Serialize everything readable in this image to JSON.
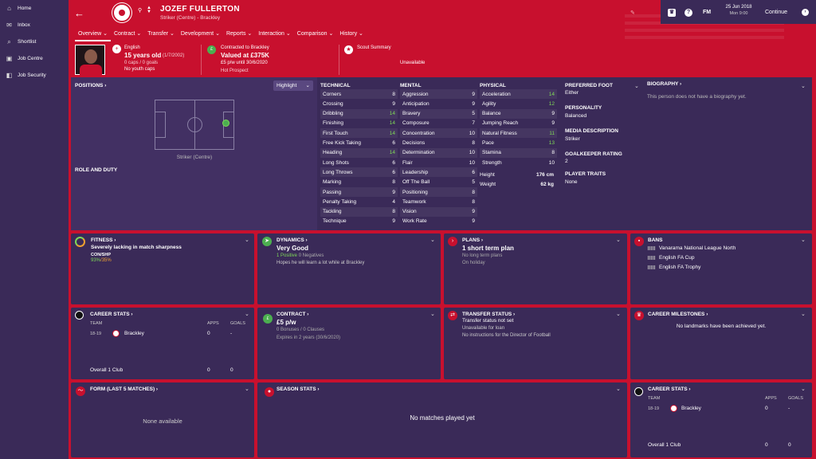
{
  "sidebar": {
    "items": [
      {
        "label": "Home",
        "icon": "house-icon",
        "glyph": "⌂"
      },
      {
        "label": "Inbox",
        "icon": "inbox-icon",
        "glyph": "✉"
      },
      {
        "label": "Shortlist",
        "icon": "search-icon",
        "glyph": "⌕"
      },
      {
        "label": "Job Centre",
        "icon": "briefcase-icon",
        "glyph": "▣"
      },
      {
        "label": "Job Security",
        "icon": "lock-icon",
        "glyph": "◧"
      }
    ]
  },
  "header": {
    "name": "JOZEF FULLERTON",
    "subtitle": "Striker (Centre) - Brackley",
    "tabs": [
      "Overview ⌄",
      "Contract ⌄",
      "Transfer ⌄",
      "Development ⌄",
      "Reports ⌄",
      "Interaction ⌄",
      "Comparison ⌄",
      "History ⌄"
    ],
    "date": "25 Jun 2018",
    "time": "Mon 9:00",
    "fm": "FM",
    "continue": "Continue"
  },
  "info": {
    "nationality": "English",
    "age": "15 years old",
    "dob": "(1/7/2002)",
    "caps": "0 caps / 0 goals",
    "youth": "No youth caps",
    "contracted": "Contracted to Brackley",
    "value": "Valued at £375K",
    "wage": "£5 p/w until 30/6/2020",
    "prospect": "Hot Prospect",
    "scout_title": "Scout Summary",
    "scout_value": "Unavailable"
  },
  "positions": {
    "title": "POSITIONS ›",
    "highlight": "Highlight",
    "position": "Striker (Centre)",
    "role_title": "ROLE AND DUTY"
  },
  "technical": {
    "title": "TECHNICAL",
    "rows": [
      [
        "Corners",
        "8"
      ],
      [
        "Crossing",
        "9"
      ],
      [
        "Dribbling",
        "14"
      ],
      [
        "Finishing",
        "14"
      ],
      [
        "First Touch",
        "14"
      ],
      [
        "Free Kick Taking",
        "6"
      ],
      [
        "Heading",
        "14"
      ],
      [
        "Long Shots",
        "6"
      ],
      [
        "Long Throws",
        "6"
      ],
      [
        "Marking",
        "8"
      ],
      [
        "Passing",
        "9"
      ],
      [
        "Penalty Taking",
        "4"
      ],
      [
        "Tackling",
        "8"
      ],
      [
        "Technique",
        "9"
      ]
    ]
  },
  "mental": {
    "title": "MENTAL",
    "rows": [
      [
        "Aggression",
        "9"
      ],
      [
        "Anticipation",
        "9"
      ],
      [
        "Bravery",
        "5"
      ],
      [
        "Composure",
        "7"
      ],
      [
        "Concentration",
        "10"
      ],
      [
        "Decisions",
        "8"
      ],
      [
        "Determination",
        "10"
      ],
      [
        "Flair",
        "10"
      ],
      [
        "Leadership",
        "6"
      ],
      [
        "Off The Ball",
        "5"
      ],
      [
        "Positioning",
        "8"
      ],
      [
        "Teamwork",
        "8"
      ],
      [
        "Vision",
        "9"
      ],
      [
        "Work Rate",
        "9"
      ]
    ]
  },
  "physical": {
    "title": "PHYSICAL",
    "rows": [
      [
        "Acceleration",
        "14"
      ],
      [
        "Agility",
        "12"
      ],
      [
        "Balance",
        "9"
      ],
      [
        "Jumping Reach",
        "9"
      ],
      [
        "Natural Fitness",
        "11"
      ],
      [
        "Pace",
        "13"
      ],
      [
        "Stamina",
        "8"
      ],
      [
        "Strength",
        "10"
      ]
    ],
    "height_label": "Height",
    "height": "176 cm",
    "weight_label": "Weight",
    "weight": "62 kg"
  },
  "details": {
    "foot_title": "PREFERRED FOOT",
    "foot": "Either",
    "pers_title": "PERSONALITY",
    "pers": "Balanced",
    "media_title": "MEDIA DESCRIPTION",
    "media": "Striker",
    "gk_title": "GOALKEEPER RATING",
    "gk": "2",
    "traits_title": "PLAYER TRAITS",
    "traits": "None"
  },
  "biography": {
    "title": "BIOGRAPHY ›",
    "text": "This person does not have a biography yet."
  },
  "fitness": {
    "title": "FITNESS ›",
    "status": "Severely lacking in match sharpness",
    "label": "CON/SHP",
    "value": "93%",
    "value2": "35%"
  },
  "dynamics": {
    "title": "DYNAMICS ›",
    "value": "Very Good",
    "pos": "1 Positive",
    "neg": "0 Negatives",
    "note": "Hopes he will learn a lot while at Brackley"
  },
  "plans": {
    "title": "PLANS ›",
    "value": "1 short term plan",
    "line1": "No long term plans",
    "line2": "On holiday"
  },
  "bans": {
    "title": "BANS",
    "items": [
      "Vanarama National League North",
      "English FA Cup",
      "English FA Trophy"
    ]
  },
  "career": {
    "title": "CAREER STATS ›",
    "h_team": "TEAM",
    "h_apps": "APPS",
    "h_goals": "GOALS",
    "season": "18-19",
    "team": "Brackley",
    "apps": "0",
    "goals": "-",
    "overall": "Overall  1 Club",
    "o_apps": "0",
    "o_goals": "0"
  },
  "contract": {
    "title": "CONTRACT ›",
    "wage": "£5 p/w",
    "bonuses": "0 Bonuses",
    "clauses": "0 Clauses",
    "expires": "Expires in 2 years (30/6/2020)"
  },
  "transfer": {
    "title": "TRANSFER STATUS ›",
    "value": "Transfer status not set",
    "line1": "Unavailable for loan",
    "line2": "No instructions for the Director of Football"
  },
  "milestones": {
    "title": "CAREER MILESTONES ›",
    "text": "No landmarks have been achieved yet."
  },
  "form": {
    "title": "FORM (LAST 5 MATCHES) ›",
    "text": "None available"
  },
  "season": {
    "title": "SEASON STATS ›",
    "text": "No matches played yet"
  },
  "career2": {
    "title": "CAREER STATS ›",
    "h_team": "TEAM",
    "h_apps": "APPS",
    "h_goals": "GOALS",
    "season": "18-19",
    "team": "Brackley",
    "apps": "0",
    "goals": "-",
    "overall": "Overall  1 Club",
    "o_apps": "0",
    "o_goals": "0"
  }
}
